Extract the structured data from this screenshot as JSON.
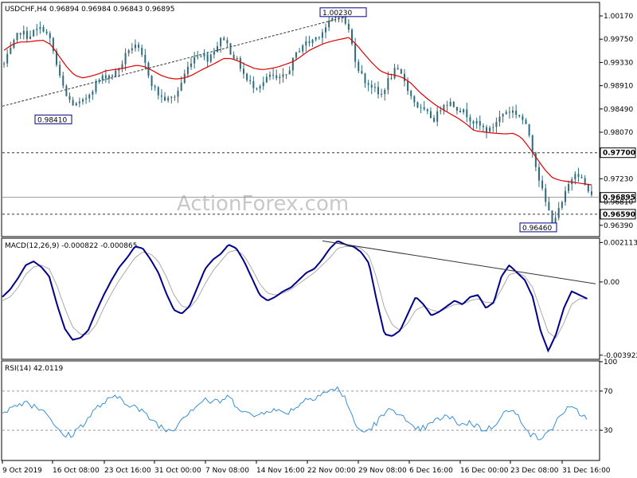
{
  "header": {
    "symbol": "USDCHF,H4",
    "ohlc": "0.96894 0.96984 0.96843 0.96895"
  },
  "watermark": "ActionForex.com",
  "colors": {
    "candles": "#2e6b7a",
    "ma": "#e00000",
    "macd_main": "#00008b",
    "macd_signal": "#aaaaaa",
    "rsi": "#3a8fd8",
    "label_border": "#00008b",
    "trendline": "#333333"
  },
  "chart_data": [
    {
      "type": "candlestick",
      "title": "USDCHF,H4",
      "ylim": [
        0.962,
        1.004
      ],
      "yticks": [
        {
          "v": 1.0017,
          "label": "1.00170"
        },
        {
          "v": 0.9975,
          "label": "0.99750"
        },
        {
          "v": 0.9933,
          "label": "0.99330"
        },
        {
          "v": 0.9891,
          "label": "0.98910"
        },
        {
          "v": 0.9849,
          "label": "0.98490"
        },
        {
          "v": 0.9807,
          "label": "0.98070"
        },
        {
          "v": 0.9723,
          "label": "0.97230"
        },
        {
          "v": 0.9681,
          "label": "0.96810"
        },
        {
          "v": 0.9639,
          "label": "0.96390"
        }
      ],
      "x_labels": [
        "9 Oct 2019",
        "16 Oct 08:00",
        "23 Oct 16:00",
        "31 Oct 00:00",
        "7 Nov 08:00",
        "14 Nov 16:00",
        "22 Nov 00:00",
        "29 Nov 08:00",
        "6 Dec 16:00",
        "16 Dec 00:00",
        "23 Dec 08:00",
        "31 Dec 16:00"
      ],
      "path_close": [
        0.993,
        0.996,
        0.999,
        0.998,
        0.999,
        0.9995,
        0.997,
        0.991,
        0.987,
        0.9855,
        0.986,
        0.988,
        0.99,
        0.991,
        0.991,
        0.993,
        0.996,
        0.996,
        0.993,
        0.989,
        0.987,
        0.9865,
        0.9875,
        0.991,
        0.994,
        0.995,
        0.994,
        0.996,
        0.998,
        0.995,
        0.993,
        0.99,
        0.989,
        0.9895,
        0.991,
        0.99,
        0.991,
        0.994,
        0.9965,
        0.997,
        0.998,
        0.9995,
        1.0012,
        1.0023,
        0.999,
        0.993,
        0.99,
        0.989,
        0.987,
        0.99,
        0.992,
        0.9905,
        0.987,
        0.985,
        0.984,
        0.983,
        0.986,
        0.986,
        0.985,
        0.984,
        0.9825,
        0.9815,
        0.981,
        0.983,
        0.9845,
        0.9845,
        0.9835,
        0.9805,
        0.974,
        0.9685,
        0.9646,
        0.967,
        0.971,
        0.974,
        0.9715,
        0.969
      ],
      "moving_average": [
        0.9955,
        0.9965,
        0.997,
        0.997,
        0.9972,
        0.9973,
        0.9965,
        0.9945,
        0.9925,
        0.991,
        0.9905,
        0.9908,
        0.9912,
        0.9918,
        0.992,
        0.9922,
        0.9925,
        0.9928,
        0.9925,
        0.9918,
        0.991,
        0.9905,
        0.9903,
        0.9905,
        0.991,
        0.9918,
        0.9925,
        0.9932,
        0.994,
        0.994,
        0.9935,
        0.9928,
        0.9922,
        0.992,
        0.9922,
        0.9925,
        0.993,
        0.9935,
        0.9945,
        0.9955,
        0.9962,
        0.9968,
        0.9972,
        0.9975,
        0.9978,
        0.9965,
        0.9948,
        0.9932,
        0.9918,
        0.9912,
        0.991,
        0.9905,
        0.9895,
        0.988,
        0.9868,
        0.9857,
        0.9848,
        0.984,
        0.9832,
        0.9822,
        0.981,
        0.9808,
        0.9806,
        0.9805,
        0.9804,
        0.9805,
        0.9798,
        0.978,
        0.976,
        0.974,
        0.9725,
        0.972,
        0.9718,
        0.9716,
        0.9714,
        0.9712
      ],
      "horizontal_lines": [
        {
          "v": 0.977,
          "label": "0.97700",
          "style": "dashed"
        },
        {
          "v": 0.9659,
          "label": "0.96590",
          "style": "dashed"
        },
        {
          "v": 0.96895,
          "label": "0.96895",
          "style": "solid"
        }
      ],
      "annotations": [
        {
          "label": "1.00230",
          "v": 1.0023
        },
        {
          "label": "0.98410",
          "v": 0.9841
        },
        {
          "label": "0.96460",
          "v": 0.9646
        }
      ],
      "trendline": {
        "from": 0.9854,
        "to": 1.0023
      }
    },
    {
      "type": "line",
      "title": "MACD(12,26,9) -0.000822 -0.000865",
      "ylim": [
        -0.0041,
        0.0023
      ],
      "yticks": [
        {
          "v": 0.002113,
          "label": "0.002113"
        },
        {
          "v": 0.0,
          "label": "0.00"
        },
        {
          "v": -0.003922,
          "label": "-0.003922"
        }
      ],
      "main": [
        -0.0008,
        -0.0004,
        0.0002,
        0.0009,
        0.0011,
        0.0008,
        0.0003,
        -0.0012,
        -0.0025,
        -0.0031,
        -0.003,
        -0.0026,
        -0.0016,
        -0.0007,
        0.0001,
        0.0008,
        0.0013,
        0.0019,
        0.0018,
        0.0012,
        0.0005,
        -0.0006,
        -0.0015,
        -0.0017,
        -0.0013,
        -0.0003,
        0.0007,
        0.0012,
        0.0015,
        0.002,
        0.0018,
        0.0011,
        0.0002,
        -0.0007,
        -0.001,
        -0.0008,
        -0.0005,
        -0.0003,
        0.0001,
        0.0005,
        0.0007,
        0.0012,
        0.0018,
        0.0022,
        0.002,
        0.0019,
        0.0016,
        0.001,
        -0.001,
        -0.0028,
        -0.0029,
        -0.0026,
        -0.0017,
        -0.0008,
        -0.0012,
        -0.0018,
        -0.0016,
        -0.0013,
        -0.001,
        -0.0012,
        -0.0008,
        -0.0007,
        -0.0014,
        -0.0011,
        0.0003,
        0.0009,
        0.0005,
        0.0001,
        -0.0008,
        -0.0026,
        -0.0037,
        -0.0028,
        -0.0014,
        -0.0005,
        -0.0007,
        -0.0009
      ],
      "signal": [
        -0.001,
        -0.0008,
        -0.0003,
        0.0004,
        0.0008,
        0.0009,
        0.0007,
        -0.0002,
        -0.0014,
        -0.0024,
        -0.0028,
        -0.0028,
        -0.0023,
        -0.0014,
        -0.0006,
        0.0001,
        0.0007,
        0.0013,
        0.0016,
        0.0015,
        0.0011,
        0.0003,
        -0.0007,
        -0.0013,
        -0.0014,
        -0.0009,
        -0.0001,
        0.0006,
        0.0011,
        0.0016,
        0.0017,
        0.0014,
        0.0007,
        -0.0001,
        -0.0006,
        -0.0007,
        -0.0006,
        -0.0004,
        -0.0001,
        0.0002,
        0.0005,
        0.0009,
        0.0013,
        0.0018,
        0.0019,
        0.0019,
        0.0018,
        0.0014,
        0.0002,
        -0.0014,
        -0.0023,
        -0.0026,
        -0.0022,
        -0.0015,
        -0.0013,
        -0.0015,
        -0.0016,
        -0.0014,
        -0.0012,
        -0.0012,
        -0.001,
        -0.0009,
        -0.0011,
        -0.0011,
        -0.0004,
        0.0004,
        0.0005,
        0.0003,
        -0.0003,
        -0.0015,
        -0.0027,
        -0.003,
        -0.0022,
        -0.0012,
        -0.0009,
        -0.0009
      ],
      "trendline": {
        "from": 0.0022,
        "to": -0.0001
      }
    },
    {
      "type": "line",
      "title": "RSI(14) 42.0119",
      "ylim": [
        0,
        100
      ],
      "yticks": [
        {
          "v": 100,
          "label": "100"
        },
        {
          "v": 70,
          "label": "70"
        },
        {
          "v": 30,
          "label": "30"
        }
      ],
      "levels": [
        70,
        30
      ],
      "values": [
        50,
        52,
        56,
        60,
        55,
        52,
        46,
        30,
        24,
        26,
        34,
        42,
        52,
        58,
        62,
        64,
        58,
        54,
        48,
        42,
        36,
        30,
        32,
        42,
        50,
        56,
        62,
        58,
        60,
        64,
        56,
        50,
        44,
        46,
        52,
        50,
        48,
        50,
        56,
        62,
        64,
        68,
        70,
        72,
        64,
        40,
        28,
        30,
        38,
        46,
        52,
        48,
        36,
        30,
        32,
        36,
        42,
        44,
        40,
        36,
        38,
        34,
        30,
        34,
        46,
        50,
        46,
        36,
        24,
        22,
        26,
        38,
        50,
        52,
        48,
        42
      ]
    }
  ]
}
